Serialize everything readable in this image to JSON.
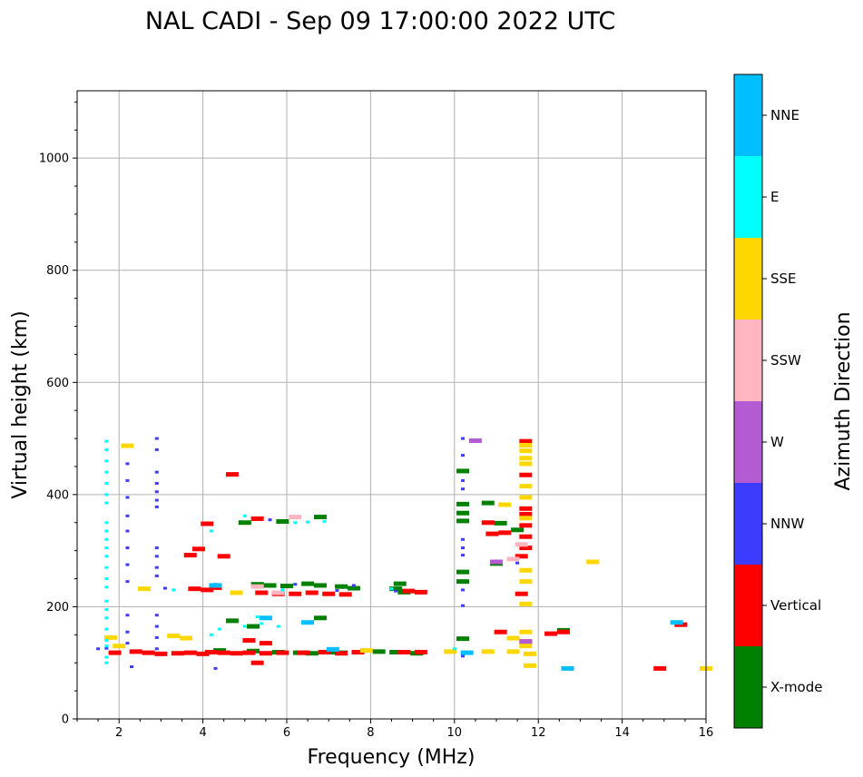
{
  "chart_data": {
    "type": "scatter",
    "title": "NAL CADI - Sep 09 17:00:00 2022 UTC",
    "xlabel": "Frequency (MHz)",
    "ylabel": "Virtual height (km)",
    "xlim": [
      1,
      16
    ],
    "ylim": [
      0,
      1120
    ],
    "xticks": [
      2,
      4,
      6,
      8,
      10,
      12,
      14,
      16
    ],
    "yticks": [
      0,
      200,
      400,
      600,
      800,
      1000
    ],
    "grid": true,
    "colorbar": {
      "label": "Azimuth Direction",
      "categories": [
        {
          "name": "X-mode",
          "color": "#008000"
        },
        {
          "name": "Vertical",
          "color": "#ff0000"
        },
        {
          "name": "NNW",
          "color": "#3c3cff"
        },
        {
          "name": "W",
          "color": "#b45ad2"
        },
        {
          "name": "SSW",
          "color": "#ffb6c1"
        },
        {
          "name": "SSE",
          "color": "#ffd700"
        },
        {
          "name": "E",
          "color": "#00ffff"
        },
        {
          "name": "NNE",
          "color": "#00bfff"
        }
      ]
    },
    "series": [
      {
        "name": "X-mode",
        "points": [
          [
            4.4,
            122
          ],
          [
            5.2,
            121
          ],
          [
            5.8,
            119
          ],
          [
            6.3,
            118
          ],
          [
            6.6,
            117
          ],
          [
            7.0,
            119
          ],
          [
            7.3,
            118
          ],
          [
            8.2,
            120
          ],
          [
            8.6,
            119
          ],
          [
            9.1,
            117
          ],
          [
            5.3,
            240
          ],
          [
            5.6,
            238
          ],
          [
            6.0,
            237
          ],
          [
            6.5,
            241
          ],
          [
            6.8,
            238
          ],
          [
            7.3,
            236
          ],
          [
            7.6,
            233
          ],
          [
            8.6,
            232
          ],
          [
            8.7,
            241
          ],
          [
            8.8,
            226
          ],
          [
            5.0,
            350
          ],
          [
            5.9,
            352
          ],
          [
            6.8,
            360
          ],
          [
            6.8,
            180
          ],
          [
            4.7,
            175
          ],
          [
            5.2,
            165
          ],
          [
            10.2,
            442
          ],
          [
            10.2,
            383
          ],
          [
            10.2,
            367
          ],
          [
            10.2,
            353
          ],
          [
            10.2,
            262
          ],
          [
            10.2,
            245
          ],
          [
            10.2,
            143
          ],
          [
            10.8,
            385
          ],
          [
            11.1,
            349
          ],
          [
            11.0,
            277
          ],
          [
            11.5,
            337
          ],
          [
            12.6,
            158
          ]
        ]
      },
      {
        "name": "Vertical",
        "points": [
          [
            1.9,
            118
          ],
          [
            2.4,
            120
          ],
          [
            2.7,
            118
          ],
          [
            3.0,
            116
          ],
          [
            3.4,
            117
          ],
          [
            3.7,
            118
          ],
          [
            4.0,
            116
          ],
          [
            4.2,
            119
          ],
          [
            4.5,
            118
          ],
          [
            4.8,
            117
          ],
          [
            5.1,
            118
          ],
          [
            5.5,
            117
          ],
          [
            5.9,
            118
          ],
          [
            6.4,
            118
          ],
          [
            6.9,
            119
          ],
          [
            7.3,
            117
          ],
          [
            7.7,
            119
          ],
          [
            8.8,
            119
          ],
          [
            9.2,
            119
          ],
          [
            3.8,
            232
          ],
          [
            4.1,
            230
          ],
          [
            4.3,
            234
          ],
          [
            5.4,
            225
          ],
          [
            5.8,
            224
          ],
          [
            6.2,
            223
          ],
          [
            6.6,
            225
          ],
          [
            7.0,
            223
          ],
          [
            7.4,
            222
          ],
          [
            8.9,
            228
          ],
          [
            9.2,
            226
          ],
          [
            4.7,
            436
          ],
          [
            4.1,
            348
          ],
          [
            5.3,
            357
          ],
          [
            3.9,
            303
          ],
          [
            3.7,
            292
          ],
          [
            4.5,
            290
          ],
          [
            5.8,
            223
          ],
          [
            5.1,
            140
          ],
          [
            5.5,
            135
          ],
          [
            5.3,
            100
          ],
          [
            10.9,
            330
          ],
          [
            11.2,
            332
          ],
          [
            10.8,
            350
          ],
          [
            11.1,
            155
          ],
          [
            11.6,
            290
          ],
          [
            11.6,
            223
          ],
          [
            11.7,
            495
          ],
          [
            11.7,
            435
          ],
          [
            11.7,
            375
          ],
          [
            11.7,
            365
          ],
          [
            11.7,
            345
          ],
          [
            11.7,
            325
          ],
          [
            11.7,
            305
          ],
          [
            11.7,
            138
          ],
          [
            12.3,
            152
          ],
          [
            12.6,
            155
          ],
          [
            14.9,
            90
          ],
          [
            15.4,
            168
          ]
        ]
      },
      {
        "name": "NNW",
        "points": [
          [
            1.5,
            125
          ],
          [
            1.7,
            126
          ],
          [
            2.2,
            455
          ],
          [
            2.2,
            425
          ],
          [
            2.2,
            395
          ],
          [
            2.2,
            362
          ],
          [
            2.2,
            335
          ],
          [
            2.2,
            305
          ],
          [
            2.2,
            275
          ],
          [
            2.2,
            245
          ],
          [
            2.2,
            185
          ],
          [
            2.2,
            155
          ],
          [
            2.2,
            135
          ],
          [
            2.3,
            93
          ],
          [
            2.9,
            500
          ],
          [
            2.9,
            480
          ],
          [
            2.9,
            440
          ],
          [
            2.9,
            420
          ],
          [
            2.9,
            405
          ],
          [
            2.9,
            390
          ],
          [
            2.9,
            378
          ],
          [
            2.9,
            305
          ],
          [
            2.9,
            290
          ],
          [
            2.9,
            270
          ],
          [
            2.9,
            255
          ],
          [
            2.9,
            185
          ],
          [
            2.9,
            165
          ],
          [
            2.9,
            145
          ],
          [
            2.9,
            125
          ],
          [
            3.1,
            233
          ],
          [
            4.3,
            240
          ],
          [
            4.3,
            90
          ],
          [
            5.6,
            355
          ],
          [
            6.2,
            240
          ],
          [
            7.2,
            229
          ],
          [
            7.6,
            238
          ],
          [
            8.6,
            228
          ],
          [
            10.2,
            500
          ],
          [
            10.2,
            470
          ],
          [
            10.2,
            425
          ],
          [
            10.2,
            410
          ],
          [
            10.2,
            320
          ],
          [
            10.2,
            305
          ],
          [
            10.2,
            292
          ],
          [
            10.2,
            230
          ],
          [
            10.2,
            202
          ],
          [
            10.2,
            112
          ],
          [
            11.5,
            278
          ]
        ]
      },
      {
        "name": "W",
        "points": [
          [
            10.5,
            496
          ],
          [
            11.7,
            138
          ],
          [
            11.0,
            280
          ]
        ]
      },
      {
        "name": "SSW",
        "points": [
          [
            5.3,
            236
          ],
          [
            5.8,
            225
          ],
          [
            6.2,
            360
          ],
          [
            11.6,
            311
          ],
          [
            11.4,
            285
          ]
        ]
      },
      {
        "name": "SSE",
        "points": [
          [
            1.8,
            145
          ],
          [
            2.0,
            130
          ],
          [
            2.2,
            487
          ],
          [
            2.6,
            232
          ],
          [
            3.3,
            148
          ],
          [
            3.6,
            144
          ],
          [
            4.8,
            225
          ],
          [
            7.9,
            122
          ],
          [
            9.9,
            120
          ],
          [
            10.8,
            120
          ],
          [
            11.4,
            120
          ],
          [
            11.8,
            95
          ],
          [
            11.8,
            116
          ],
          [
            11.7,
            130
          ],
          [
            11.7,
            155
          ],
          [
            11.4,
            144
          ],
          [
            11.7,
            488
          ],
          [
            11.7,
            478
          ],
          [
            11.7,
            465
          ],
          [
            11.7,
            455
          ],
          [
            11.7,
            415
          ],
          [
            11.7,
            395
          ],
          [
            11.7,
            358
          ],
          [
            11.7,
            265
          ],
          [
            11.7,
            245
          ],
          [
            11.7,
            205
          ],
          [
            11.2,
            382
          ],
          [
            13.3,
            280
          ],
          [
            16.0,
            90
          ]
        ]
      },
      {
        "name": "E",
        "points": [
          [
            1.7,
            495
          ],
          [
            1.7,
            480
          ],
          [
            1.7,
            460
          ],
          [
            1.7,
            440
          ],
          [
            1.7,
            420
          ],
          [
            1.7,
            400
          ],
          [
            1.7,
            385
          ],
          [
            1.7,
            350
          ],
          [
            1.7,
            335
          ],
          [
            1.7,
            320
          ],
          [
            1.7,
            305
          ],
          [
            1.7,
            290
          ],
          [
            1.7,
            270
          ],
          [
            1.7,
            250
          ],
          [
            1.7,
            235
          ],
          [
            1.7,
            210
          ],
          [
            1.7,
            195
          ],
          [
            1.7,
            180
          ],
          [
            1.7,
            160
          ],
          [
            1.7,
            140
          ],
          [
            1.7,
            130
          ],
          [
            1.7,
            110
          ],
          [
            1.7,
            100
          ],
          [
            3.3,
            230
          ],
          [
            4.2,
            335
          ],
          [
            4.2,
            150
          ],
          [
            4.4,
            160
          ],
          [
            5.0,
            165
          ],
          [
            5.4,
            170
          ],
          [
            5.8,
            165
          ],
          [
            5.3,
            182
          ],
          [
            6.2,
            350
          ],
          [
            6.5,
            351
          ],
          [
            6.9,
            352
          ],
          [
            5.0,
            362
          ],
          [
            5.9,
            230
          ],
          [
            8.5,
            232
          ],
          [
            10.0,
            125
          ]
        ]
      },
      {
        "name": "NNE",
        "points": [
          [
            4.3,
            238
          ],
          [
            5.5,
            180
          ],
          [
            6.5,
            172
          ],
          [
            7.1,
            124
          ],
          [
            12.7,
            90
          ],
          [
            15.3,
            172
          ],
          [
            10.3,
            118
          ]
        ]
      }
    ]
  }
}
